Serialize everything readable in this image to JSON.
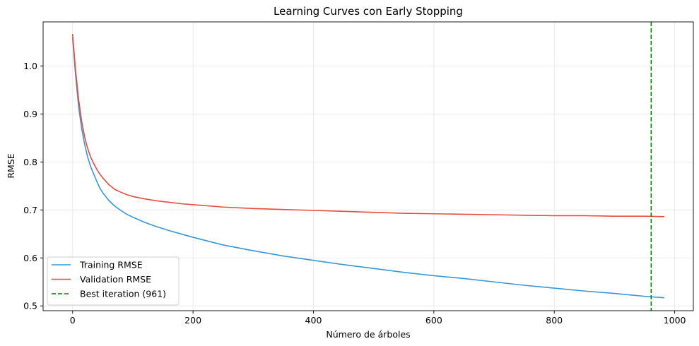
{
  "chart_data": {
    "type": "line",
    "title": "Learning Curves con Early Stopping",
    "xlabel": "Número de árboles",
    "ylabel": "RMSE",
    "xlim": [
      -49,
      1031
    ],
    "ylim": [
      0.49,
      1.092
    ],
    "xticks": [
      0,
      200,
      400,
      600,
      800,
      1000
    ],
    "yticks": [
      0.5,
      0.6,
      0.7,
      0.8,
      0.9,
      1.0
    ],
    "xtick_labels": [
      "0",
      "200",
      "400",
      "600",
      "800",
      "1000"
    ],
    "ytick_labels": [
      "0.5",
      "0.6",
      "0.7",
      "0.8",
      "0.9",
      "1.0"
    ],
    "grid": true,
    "legend_position": "lower-left",
    "series": [
      {
        "name": "Training RMSE",
        "color": "#3498db",
        "style": "solid",
        "x": [
          0,
          5,
          10,
          15,
          20,
          25,
          30,
          35,
          40,
          45,
          50,
          60,
          70,
          80,
          90,
          100,
          120,
          140,
          160,
          180,
          200,
          250,
          300,
          350,
          400,
          450,
          500,
          550,
          600,
          650,
          700,
          750,
          800,
          850,
          900,
          950,
          982
        ],
        "y": [
          1.058,
          0.98,
          0.915,
          0.87,
          0.837,
          0.81,
          0.79,
          0.775,
          0.76,
          0.746,
          0.736,
          0.72,
          0.708,
          0.699,
          0.691,
          0.685,
          0.674,
          0.665,
          0.657,
          0.65,
          0.643,
          0.627,
          0.615,
          0.604,
          0.595,
          0.586,
          0.578,
          0.57,
          0.563,
          0.557,
          0.55,
          0.543,
          0.537,
          0.531,
          0.526,
          0.52,
          0.517
        ]
      },
      {
        "name": "Validation RMSE",
        "color": "#e74c3c",
        "style": "solid",
        "x": [
          0,
          5,
          10,
          15,
          20,
          25,
          30,
          35,
          40,
          45,
          50,
          60,
          70,
          80,
          90,
          100,
          120,
          140,
          160,
          180,
          200,
          250,
          300,
          350,
          400,
          450,
          500,
          550,
          600,
          650,
          700,
          750,
          800,
          850,
          900,
          950,
          982
        ],
        "y": [
          1.066,
          0.99,
          0.93,
          0.885,
          0.852,
          0.828,
          0.81,
          0.797,
          0.785,
          0.775,
          0.767,
          0.753,
          0.743,
          0.737,
          0.732,
          0.728,
          0.723,
          0.719,
          0.716,
          0.713,
          0.711,
          0.706,
          0.703,
          0.701,
          0.699,
          0.697,
          0.695,
          0.693,
          0.692,
          0.691,
          0.69,
          0.689,
          0.688,
          0.688,
          0.687,
          0.687,
          0.686
        ]
      }
    ],
    "vlines": [
      {
        "name": "Best iteration (961)",
        "x": 961,
        "color": "#008000",
        "style": "dashed"
      }
    ]
  }
}
